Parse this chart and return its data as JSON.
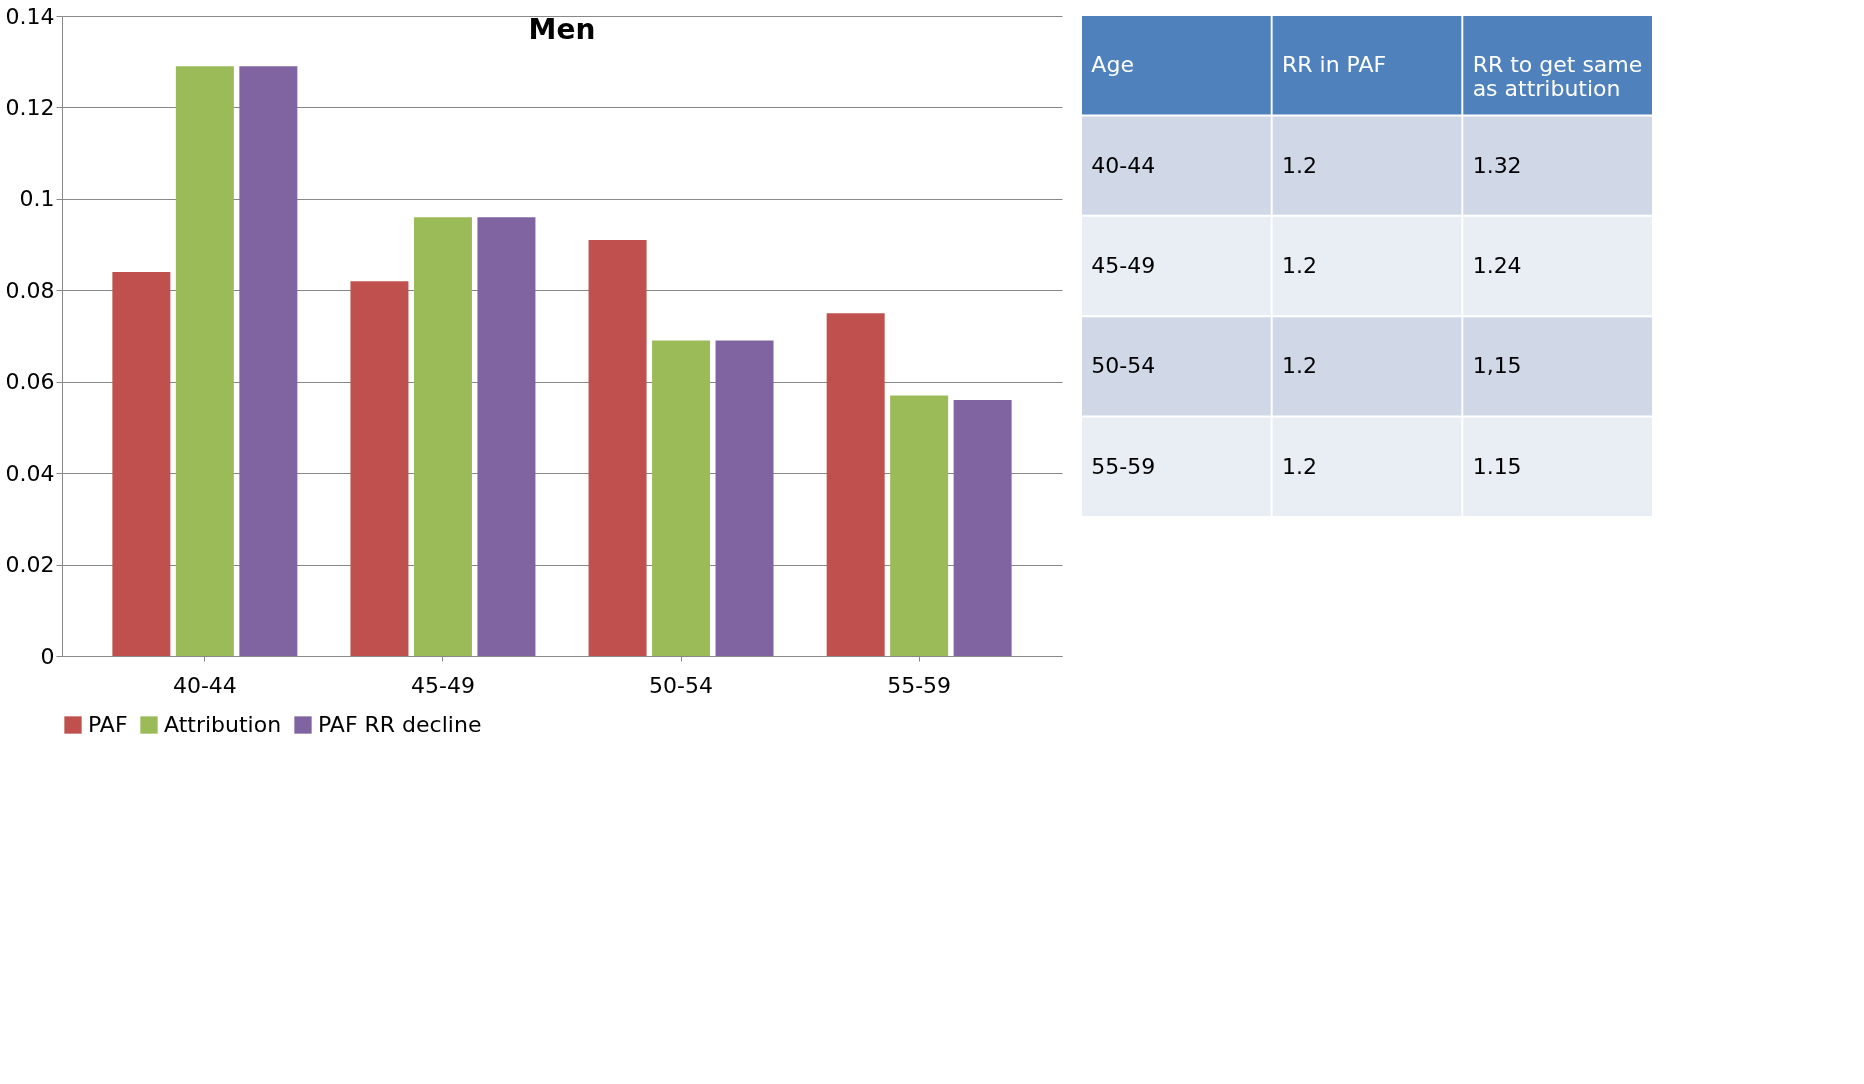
{
  "chart_data": [
    {
      "type": "bar",
      "title": "Men",
      "categories": [
        "40-44",
        "45-49",
        "50-54",
        "55-59"
      ],
      "series": [
        {
          "name": "PAF",
          "color": "#c0504d",
          "values": [
            0.084,
            0.082,
            0.091,
            0.075
          ]
        },
        {
          "name": "Attribution",
          "color": "#9bbb59",
          "values": [
            0.129,
            0.096,
            0.069,
            0.057
          ]
        },
        {
          "name": "PAF RR decline",
          "color": "#8064a2",
          "values": [
            0.129,
            0.096,
            0.069,
            0.056
          ]
        }
      ],
      "ylim": [
        0,
        0.14
      ],
      "yticks": [
        0,
        0.02,
        0.04,
        0.06,
        0.08,
        0.1,
        0.12,
        0.14
      ],
      "grid": "y",
      "legend": "bottom"
    },
    {
      "type": "other",
      "categories": [
        "Age",
        "RR in PAF",
        "RR to get same as attribution"
      ],
      "cell_labels": [
        [
          "40-44",
          "1.2",
          "1.32"
        ],
        [
          "45-49",
          "1.2",
          "1.24"
        ],
        [
          "50-54",
          "1.2",
          "1,15"
        ],
        [
          "55-59",
          "1.2",
          "1.15"
        ]
      ]
    }
  ]
}
